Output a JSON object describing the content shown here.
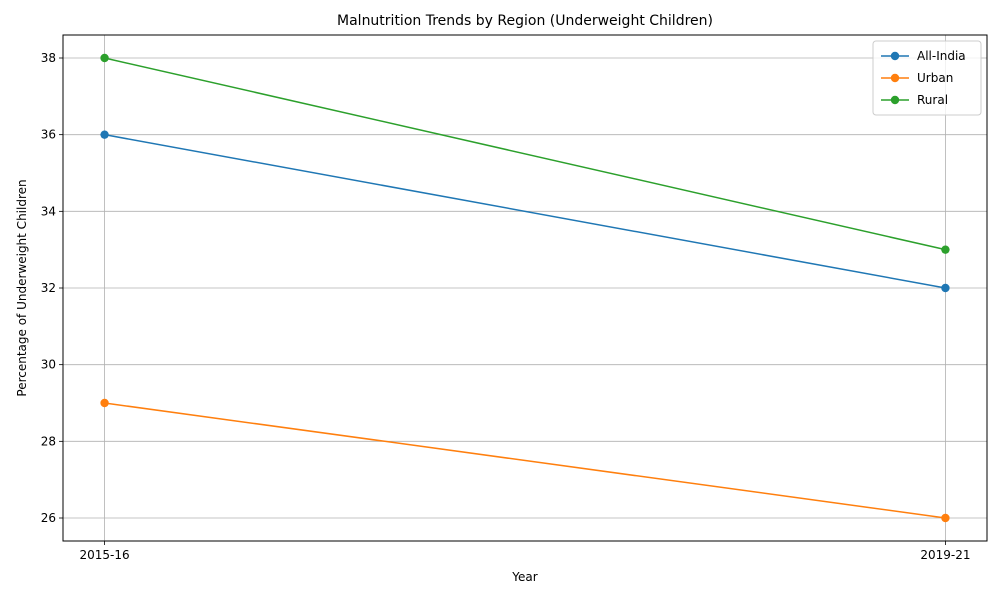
{
  "chart_data": {
    "type": "line",
    "title": "Malnutrition Trends by Region (Underweight Children)",
    "xlabel": "Year",
    "ylabel": "Percentage of Underweight Children",
    "categories": [
      "2015-16",
      "2019-21"
    ],
    "ylim": [
      25.4,
      38.6
    ],
    "yticks": [
      26,
      28,
      30,
      32,
      34,
      36,
      38
    ],
    "grid": true,
    "legend_position": "top-right",
    "series": [
      {
        "name": "All-India",
        "values": [
          36,
          32
        ],
        "color": "#1f77b4"
      },
      {
        "name": "Urban",
        "values": [
          29,
          26
        ],
        "color": "#ff7f0e"
      },
      {
        "name": "Rural",
        "values": [
          38,
          33
        ],
        "color": "#2ca02c"
      }
    ]
  }
}
